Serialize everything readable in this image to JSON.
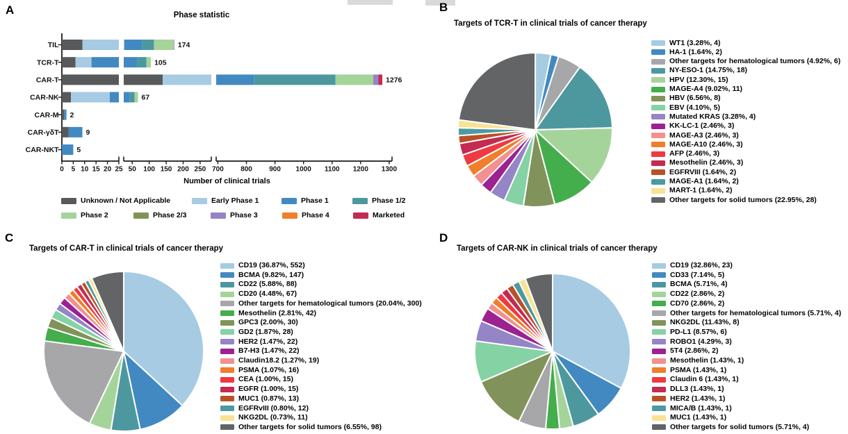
{
  "figure": {
    "panel_labels": {
      "a": "A",
      "b": "B",
      "c": "C",
      "d": "D"
    }
  },
  "chart_data": [
    {
      "type": "bar",
      "panel": "A",
      "title": "Phase statistic",
      "xlabel": "Number of clinical trials",
      "orientation": "horizontal",
      "stacked": true,
      "axis_break": true,
      "grid": false,
      "segments": [
        {
          "domain": [
            0,
            25
          ],
          "ticks": [
            0,
            5,
            10,
            15,
            20,
            25
          ]
        },
        {
          "domain": [
            25,
            283
          ],
          "ticks": [
            50,
            100,
            150,
            200,
            250
          ]
        },
        {
          "domain": [
            694,
            1310
          ],
          "ticks": [
            700,
            800,
            900,
            1000,
            1100,
            1200,
            1300
          ]
        }
      ],
      "categories": [
        "TIL",
        "TCR-T",
        "CAR-T",
        "CAR-NK",
        "CAR-M",
        "CAR-γδT",
        "CAR-NKT"
      ],
      "totals": [
        174,
        105,
        1276,
        67,
        2,
        9,
        5
      ],
      "series": [
        {
          "name": "Unknown / Not Applicable",
          "color": "#58595B",
          "values": [
            9,
            6,
            140,
            4,
            1,
            3,
            0
          ]
        },
        {
          "name": "Early Phase 1",
          "color": "#A6CBE3",
          "values": [
            18,
            7,
            340,
            17,
            0,
            0,
            0
          ]
        },
        {
          "name": "Phase 1",
          "color": "#4289C1",
          "values": [
            52,
            51,
            346,
            22,
            1,
            6,
            5
          ]
        },
        {
          "name": "Phase 1/2",
          "color": "#4D989F",
          "values": [
            35,
            28,
            286,
            14,
            0,
            0,
            0
          ]
        },
        {
          "name": "Phase 2",
          "color": "#A5D49B",
          "values": [
            58,
            13,
            132,
            10,
            0,
            0,
            0
          ]
        },
        {
          "name": "Phase 2/3",
          "color": "#81935A",
          "values": [
            0,
            0,
            0,
            0,
            0,
            0,
            0
          ]
        },
        {
          "name": "Phase 3",
          "color": "#9584C6",
          "values": [
            2,
            0,
            18,
            0,
            0,
            0,
            0
          ]
        },
        {
          "name": "Phase 4",
          "color": "#F07E2B",
          "values": [
            0,
            0,
            0,
            0,
            0,
            0,
            0
          ]
        },
        {
          "name": "Marketed",
          "color": "#C32B51",
          "values": [
            0,
            0,
            14,
            0,
            0,
            0,
            0
          ]
        }
      ],
      "legend_position": "bottom"
    },
    {
      "type": "pie",
      "panel": "B",
      "title": "Targets of TCR-T in clinical trials of cancer therapy",
      "start_angle_deg": -90,
      "direction": "clockwise",
      "legend_position": "right",
      "slices": [
        {
          "label": "WT1 (3.28%, 4)",
          "target": "WT1",
          "percent": 3.28,
          "count": 4,
          "color": "#A6CBE3"
        },
        {
          "label": "HA-1 (1.64%, 2)",
          "target": "HA-1",
          "percent": 1.64,
          "count": 2,
          "color": "#4289C1"
        },
        {
          "label": "Other targets for hematological tumors (4.92%, 6)",
          "target": "Other targets for hematological tumors",
          "percent": 4.92,
          "count": 6,
          "color": "#A7A7AA"
        },
        {
          "label": "NY-ESO-1 (14.75%, 18)",
          "target": "NY-ESO-1",
          "percent": 14.75,
          "count": 18,
          "color": "#4D989F"
        },
        {
          "label": "HPV (12.30%, 15)",
          "target": "HPV",
          "percent": 12.3,
          "count": 15,
          "color": "#A5D49B"
        },
        {
          "label": "MAGE-A4 (9.02%, 11)",
          "target": "MAGE-A4",
          "percent": 9.02,
          "count": 11,
          "color": "#44AD4C"
        },
        {
          "label": "HBV (6.56%, 8)",
          "target": "HBV",
          "percent": 6.56,
          "count": 8,
          "color": "#81935A"
        },
        {
          "label": "EBV (4.10%, 5)",
          "target": "EBV",
          "percent": 4.1,
          "count": 5,
          "color": "#85D2A4"
        },
        {
          "label": "Mutated KRAS (3.28%, 4)",
          "target": "Mutated KRAS",
          "percent": 3.28,
          "count": 4,
          "color": "#9584C6"
        },
        {
          "label": "KK-LC-1 (2.46%, 3)",
          "target": "KK-LC-1",
          "percent": 2.46,
          "count": 3,
          "color": "#9C2191"
        },
        {
          "label": "MAGE-A3 (2.46%, 3)",
          "target": "MAGE-A3",
          "percent": 2.46,
          "count": 3,
          "color": "#F29190"
        },
        {
          "label": "MAGE-A10 (2.46%, 3)",
          "target": "MAGE-A10",
          "percent": 2.46,
          "count": 3,
          "color": "#F07E2B"
        },
        {
          "label": "AFP (2.46%, 3)",
          "target": "AFP",
          "percent": 2.46,
          "count": 3,
          "color": "#EE3A40"
        },
        {
          "label": "Mesothelin (2.46%, 3)",
          "target": "Mesothelin",
          "percent": 2.46,
          "count": 3,
          "color": "#C32B51"
        },
        {
          "label": "EGFRVIII (1.64%, 2)",
          "target": "EGFRVIII",
          "percent": 1.64,
          "count": 2,
          "color": "#B95127"
        },
        {
          "label": "MAGE-A1 (1.64%, 2)",
          "target": "MAGE-A1",
          "percent": 1.64,
          "count": 2,
          "color": "#4C99A1"
        },
        {
          "label": "MART-1 (1.64%, 2)",
          "target": "MART-1",
          "percent": 1.64,
          "count": 2,
          "color": "#FAE294"
        },
        {
          "label": "Other targets for solid tumors (22.95%, 28)",
          "target": "Other targets for solid tumors",
          "percent": 22.95,
          "count": 28,
          "color": "#636466"
        }
      ]
    },
    {
      "type": "pie",
      "panel": "C",
      "title": "Targets of CAR-T in clinical trials of cancer therapy",
      "start_angle_deg": -90,
      "direction": "clockwise",
      "legend_position": "right",
      "slices": [
        {
          "label": "CD19 (36.87%, 552)",
          "target": "CD19",
          "percent": 36.87,
          "count": 552,
          "color": "#A6CBE3"
        },
        {
          "label": "BCMA (9.82%, 147)",
          "target": "BCMA",
          "percent": 9.82,
          "count": 147,
          "color": "#4289C1"
        },
        {
          "label": "CD22 (5.88%, 88)",
          "target": "CD22",
          "percent": 5.88,
          "count": 88,
          "color": "#4D989F"
        },
        {
          "label": "CD20 (4.48%, 67)",
          "target": "CD20",
          "percent": 4.48,
          "count": 67,
          "color": "#A5D49B"
        },
        {
          "label": "Other targets for hematological tumors (20.04%, 300)",
          "target": "Other targets for hematological tumors",
          "percent": 20.04,
          "count": 300,
          "color": "#A7A7AA"
        },
        {
          "label": "Mesothelin (2.81%, 42)",
          "target": "Mesothelin",
          "percent": 2.81,
          "count": 42,
          "color": "#44AD4C"
        },
        {
          "label": "GPC3 (2.00%, 30)",
          "target": "GPC3",
          "percent": 2.0,
          "count": 30,
          "color": "#81935A"
        },
        {
          "label": "GD2 (1.87%, 28)",
          "target": "GD2",
          "percent": 1.87,
          "count": 28,
          "color": "#85D2A4"
        },
        {
          "label": "HER2 (1.47%, 22)",
          "target": "HER2",
          "percent": 1.47,
          "count": 22,
          "color": "#9584C6"
        },
        {
          "label": "B7-H3 (1.47%, 22)",
          "target": "B7-H3",
          "percent": 1.47,
          "count": 22,
          "color": "#9C2191"
        },
        {
          "label": "Claudin18.2 (1.27%, 19)",
          "target": "Claudin18.2",
          "percent": 1.27,
          "count": 19,
          "color": "#F29190"
        },
        {
          "label": "PSMA (1.07%, 16)",
          "target": "PSMA",
          "percent": 1.07,
          "count": 16,
          "color": "#F07E2B"
        },
        {
          "label": "CEA (1.00%, 15)",
          "target": "CEA",
          "percent": 1.0,
          "count": 15,
          "color": "#EE3A40"
        },
        {
          "label": "EGFR (1.00%, 15)",
          "target": "EGFR",
          "percent": 1.0,
          "count": 15,
          "color": "#C32B51"
        },
        {
          "label": "MUC1 (0.87%, 13)",
          "target": "MUC1",
          "percent": 0.87,
          "count": 13,
          "color": "#B95127"
        },
        {
          "label": "EGFRvIII (0.80%, 12)",
          "target": "EGFRvIII",
          "percent": 0.8,
          "count": 12,
          "color": "#4C99A1"
        },
        {
          "label": "NKG2DL (0.73%, 11)",
          "target": "NKG2DL",
          "percent": 0.73,
          "count": 11,
          "color": "#FAE294"
        },
        {
          "label": "Other targets for solid tumors (6.55%, 98)",
          "target": "Other targets for solid tumors",
          "percent": 6.55,
          "count": 98,
          "color": "#636466"
        }
      ]
    },
    {
      "type": "pie",
      "panel": "D",
      "title": "Targets of CAR-NK in clinical trials of cancer therapy",
      "start_angle_deg": -90,
      "direction": "clockwise",
      "legend_position": "right",
      "slices": [
        {
          "label": "CD19 (32.86%, 23)",
          "target": "CD19",
          "percent": 32.86,
          "count": 23,
          "color": "#A6CBE3"
        },
        {
          "label": "CD33 (7.14%, 5)",
          "target": "CD33",
          "percent": 7.14,
          "count": 5,
          "color": "#4289C1"
        },
        {
          "label": "BCMA (5.71%, 4)",
          "target": "BCMA",
          "percent": 5.71,
          "count": 4,
          "color": "#4D989F"
        },
        {
          "label": "CD22 (2.86%, 2)",
          "target": "CD22",
          "percent": 2.86,
          "count": 2,
          "color": "#A5D49B"
        },
        {
          "label": "CD70 (2.86%, 2)",
          "target": "CD70",
          "percent": 2.86,
          "count": 2,
          "color": "#44AD4C"
        },
        {
          "label": "Other targets for hematological tumors (5.71%, 4)",
          "target": "Other targets for hematological tumors",
          "percent": 5.71,
          "count": 4,
          "color": "#A7A7AA"
        },
        {
          "label": "NKG2DL (11.43%, 8)",
          "target": "NKG2DL",
          "percent": 11.43,
          "count": 8,
          "color": "#81935A"
        },
        {
          "label": "PD-L1 (8.57%, 6)",
          "target": "PD-L1",
          "percent": 8.57,
          "count": 6,
          "color": "#85D2A4"
        },
        {
          "label": "ROBO1 (4.29%, 3)",
          "target": "ROBO1",
          "percent": 4.29,
          "count": 3,
          "color": "#9584C6"
        },
        {
          "label": "5T4 (2.86%, 2)",
          "target": "5T4",
          "percent": 2.86,
          "count": 2,
          "color": "#9C2191"
        },
        {
          "label": "Mesothelin (1.43%, 1)",
          "target": "Mesothelin",
          "percent": 1.43,
          "count": 1,
          "color": "#F29190"
        },
        {
          "label": "PSMA (1.43%, 1)",
          "target": "PSMA",
          "percent": 1.43,
          "count": 1,
          "color": "#F07E2B"
        },
        {
          "label": "Claudin 6 (1.43%, 1)",
          "target": "Claudin 6",
          "percent": 1.43,
          "count": 1,
          "color": "#EE3A40"
        },
        {
          "label": "DLL3 (1.43%, 1)",
          "target": "DLL3",
          "percent": 1.43,
          "count": 1,
          "color": "#C32B51"
        },
        {
          "label": "HER2 (1.43%, 1)",
          "target": "HER2",
          "percent": 1.43,
          "count": 1,
          "color": "#B95127"
        },
        {
          "label": "MICA/B (1.43%, 1)",
          "target": "MICA/B",
          "percent": 1.43,
          "count": 1,
          "color": "#4C99A1"
        },
        {
          "label": "MUC1 (1.43%, 1)",
          "target": "MUC1",
          "percent": 1.43,
          "count": 1,
          "color": "#FAE294"
        },
        {
          "label": "Other targets for solid tumors (5.71%, 4)",
          "target": "Other targets for solid tumors",
          "percent": 5.71,
          "count": 4,
          "color": "#636466"
        }
      ]
    }
  ]
}
